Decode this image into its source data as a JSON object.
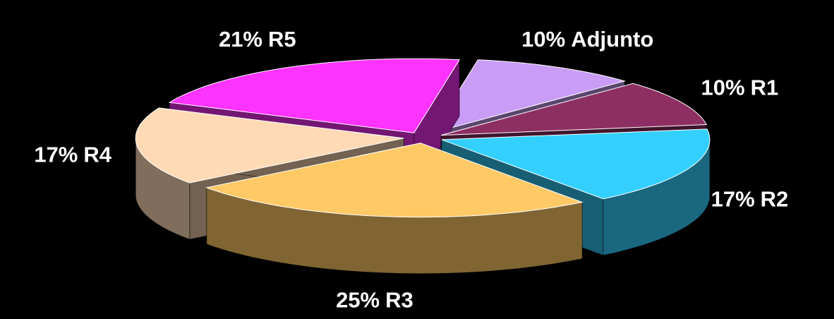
{
  "chart_data": {
    "type": "pie",
    "categories": [
      "Adjunto",
      "R1",
      "R2",
      "R3",
      "R4",
      "R5"
    ],
    "values": [
      10,
      10,
      17,
      25,
      17,
      21
    ],
    "value_labels": [
      "10%",
      "10%",
      "17%",
      "25%",
      "17%",
      "21%"
    ],
    "colors": [
      "#c99cf5",
      "#8e2f63",
      "#33d0ff",
      "#ffc966",
      "#ffdab5",
      "#ff33ff"
    ],
    "exploded": true,
    "three_d": true
  }
}
